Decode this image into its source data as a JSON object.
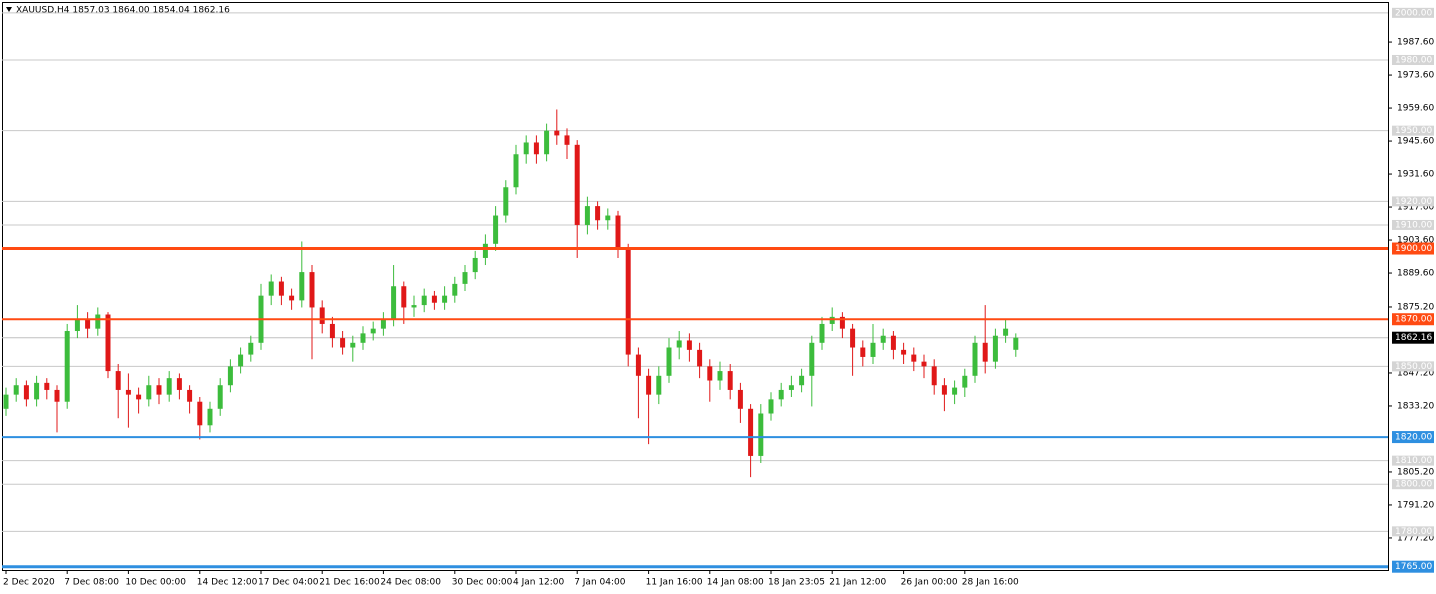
{
  "chart_data": {
    "type": "candlestick",
    "title": "XAUUSD,H4  1857.03 1864.00 1854.04 1862.16",
    "up_color": "#3cbc3c",
    "down_color": "#e01818",
    "ylim": [
      1763.6,
      2004.6
    ],
    "yticks": [
      {
        "value": 1987.6,
        "label": "1987.60"
      },
      {
        "value": 1973.6,
        "label": "1973.60"
      },
      {
        "value": 1959.6,
        "label": "1959.60"
      },
      {
        "value": 1945.6,
        "label": "1945.60"
      },
      {
        "value": 1931.6,
        "label": "1931.60"
      },
      {
        "value": 1917.6,
        "label": "1917.60"
      },
      {
        "value": 1903.6,
        "label": "1903.60"
      },
      {
        "value": 1889.6,
        "label": "1889.60"
      },
      {
        "value": 1875.2,
        "label": "1875.20"
      },
      {
        "value": 1847.2,
        "label": "1847.20"
      },
      {
        "value": 1833.2,
        "label": "1833.20"
      },
      {
        "value": 1805.2,
        "label": "1805.20"
      },
      {
        "value": 1791.2,
        "label": "1791.20"
      },
      {
        "value": 1777.2,
        "label": "1777.20"
      }
    ],
    "grey_levels": [
      {
        "value": 2000,
        "label": "2000.00"
      },
      {
        "value": 1980,
        "label": "1980.00"
      },
      {
        "value": 1950,
        "label": "1950.00"
      },
      {
        "value": 1920,
        "label": "1920.00"
      },
      {
        "value": 1910,
        "label": "1910.00"
      },
      {
        "value": 1850,
        "label": "1850.00"
      },
      {
        "value": 1810,
        "label": "1810.00"
      },
      {
        "value": 1800,
        "label": "1800.00"
      },
      {
        "value": 1780,
        "label": "1780.00"
      }
    ],
    "levels": [
      {
        "value": 1900,
        "label": "1900.00",
        "color": "#ff4a12",
        "bold": true
      },
      {
        "value": 1870,
        "label": "1870.00",
        "color": "#ff4a12",
        "bold": false
      },
      {
        "value": 1820,
        "label": "1820.00",
        "color": "#2e8fe0",
        "bold": false
      },
      {
        "value": 1765,
        "label": "1765.00",
        "color": "#2e8fe0",
        "bold": true
      }
    ],
    "last_price": {
      "value": 1862.16,
      "label": "1862.16"
    },
    "categories": [
      "2 Dec 2020",
      null,
      null,
      null,
      null,
      null,
      "7 Dec 08:00",
      null,
      null,
      null,
      null,
      null,
      "10 Dec 00:00",
      null,
      null,
      null,
      null,
      null,
      null,
      "14 Dec 12:00",
      null,
      null,
      null,
      null,
      null,
      "17 Dec 04:00",
      null,
      null,
      null,
      null,
      null,
      "21 Dec 16:00",
      null,
      null,
      null,
      null,
      null,
      "24 Dec 08:00",
      null,
      null,
      null,
      null,
      null,
      null,
      "30 Dec 00:00",
      null,
      null,
      null,
      null,
      null,
      "4 Jan 12:00",
      null,
      null,
      null,
      null,
      null,
      "7 Jan 04:00",
      null,
      null,
      null,
      null,
      null,
      null,
      "11 Jan 16:00",
      null,
      null,
      null,
      null,
      null,
      "14 Jan 08:00",
      null,
      null,
      null,
      null,
      null,
      "18 Jan 23:05",
      null,
      null,
      null,
      null,
      null,
      "21 Jan 12:00",
      null,
      null,
      null,
      null,
      null,
      null,
      "26 Jan 00:00",
      null,
      null,
      null,
      null,
      null,
      "28 Jan 16:00",
      null,
      null,
      null,
      null,
      null
    ],
    "open": [
      1832,
      1838,
      1842,
      1836,
      1843,
      1840,
      1835,
      1865,
      1870,
      1866,
      1872,
      1848,
      1840,
      1838,
      1836,
      1842,
      1838,
      1845,
      1840,
      1835,
      1825,
      1832,
      1842,
      1850,
      1855,
      1860,
      1880,
      1886,
      1880,
      1878,
      1890,
      1875,
      1868,
      1862,
      1858,
      1860,
      1864,
      1866,
      1870,
      1884,
      1875,
      1876,
      1880,
      1877,
      1880,
      1885,
      1890,
      1896,
      1902,
      1914,
      1926,
      1940,
      1945,
      1940,
      1950,
      1948,
      1944,
      1910,
      1918,
      1912,
      1914,
      1900,
      1855,
      1846,
      1838,
      1846,
      1858,
      1861,
      1857,
      1850,
      1844,
      1848,
      1840,
      1832,
      1812,
      1830,
      1836,
      1840,
      1842,
      1846,
      1860,
      1868,
      1871,
      1866,
      1858,
      1854,
      1860,
      1863,
      1857,
      1855,
      1852,
      1850,
      1842,
      1838,
      1841,
      1846,
      1860,
      1852,
      1863,
      1857.03
    ],
    "high": [
      1841,
      1845,
      1844,
      1846,
      1845,
      1842,
      1868,
      1876,
      1873,
      1875,
      1873,
      1851,
      1847,
      1841,
      1846,
      1845,
      1848,
      1847,
      1842,
      1837,
      1835,
      1845,
      1853,
      1858,
      1863,
      1885,
      1889,
      1888,
      1883,
      1903,
      1893,
      1878,
      1871,
      1865,
      1863,
      1867,
      1869,
      1873,
      1893,
      1886,
      1880,
      1883,
      1882,
      1884,
      1888,
      1893,
      1899,
      1906,
      1918,
      1929,
      1944,
      1948,
      1948,
      1953,
      1959,
      1951,
      1946,
      1922,
      1920,
      1917,
      1916,
      1902,
      1858,
      1849,
      1850,
      1862,
      1865,
      1864,
      1860,
      1853,
      1852,
      1851,
      1843,
      1834,
      1834,
      1839,
      1843,
      1846,
      1849,
      1863,
      1871,
      1875,
      1873,
      1868,
      1861,
      1868,
      1866,
      1865,
      1860,
      1858,
      1855,
      1853,
      1845,
      1844,
      1849,
      1863,
      1876,
      1866,
      1870,
      1864
    ],
    "low": [
      1829,
      1835,
      1833,
      1833,
      1836,
      1822,
      1832,
      1862,
      1862,
      1863,
      1845,
      1828,
      1824,
      1830,
      1833,
      1834,
      1835,
      1836,
      1830,
      1819,
      1822,
      1829,
      1839,
      1847,
      1852,
      1857,
      1876,
      1876,
      1874,
      1875,
      1853,
      1864,
      1858,
      1855,
      1852,
      1857,
      1861,
      1863,
      1867,
      1868,
      1871,
      1873,
      1874,
      1874,
      1877,
      1882,
      1887,
      1893,
      1899,
      1911,
      1923,
      1936,
      1936,
      1937,
      1944,
      1938,
      1896,
      1906,
      1908,
      1908,
      1896,
      1850,
      1828,
      1817,
      1834,
      1843,
      1853,
      1852,
      1845,
      1835,
      1840,
      1836,
      1826,
      1803,
      1809,
      1827,
      1833,
      1837,
      1839,
      1833,
      1857,
      1865,
      1862,
      1846,
      1850,
      1851,
      1857,
      1853,
      1851,
      1848,
      1845,
      1838,
      1831,
      1834,
      1837,
      1843,
      1847,
      1849,
      1860,
      1854.04
    ],
    "close": [
      1838,
      1842,
      1836,
      1843,
      1840,
      1835,
      1865,
      1870,
      1866,
      1872,
      1848,
      1840,
      1838,
      1836,
      1842,
      1838,
      1845,
      1840,
      1835,
      1825,
      1832,
      1842,
      1850,
      1855,
      1860,
      1880,
      1886,
      1880,
      1878,
      1890,
      1875,
      1868,
      1862,
      1858,
      1860,
      1864,
      1866,
      1870,
      1884,
      1875,
      1876,
      1880,
      1877,
      1880,
      1885,
      1890,
      1896,
      1902,
      1914,
      1926,
      1940,
      1945,
      1940,
      1950,
      1948,
      1944,
      1910,
      1918,
      1912,
      1914,
      1900,
      1855,
      1846,
      1838,
      1846,
      1858,
      1861,
      1857,
      1850,
      1844,
      1848,
      1840,
      1832,
      1812,
      1830,
      1836,
      1840,
      1842,
      1846,
      1860,
      1868,
      1871,
      1866,
      1858,
      1854,
      1860,
      1863,
      1857,
      1855,
      1852,
      1850,
      1842,
      1838,
      1841,
      1846,
      1860,
      1852,
      1863,
      1866,
      1862.16
    ]
  }
}
